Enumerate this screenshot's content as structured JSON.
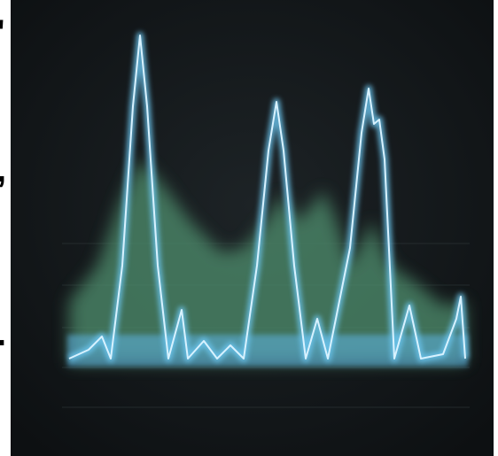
{
  "fragments": [
    "'",
    ",",
    "."
  ]
}
